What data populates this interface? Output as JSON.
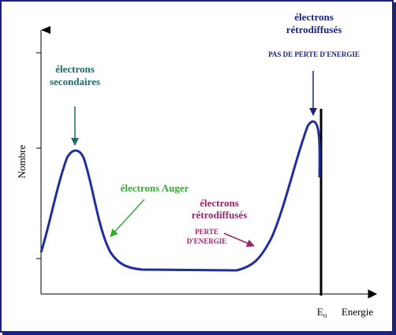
{
  "axes": {
    "y_label": "Nombre",
    "x_label": "Energie",
    "edge_label": "E",
    "edge_sub": "o"
  },
  "annotations": [
    {
      "lines": [
        "électrons",
        "secondaires"
      ]
    },
    {
      "lines": [
        "électrons Auger"
      ]
    },
    {
      "lines": [
        "électrons",
        "rétrodiffusés"
      ],
      "note": [
        "PERTE",
        "D'ENERGIE"
      ]
    },
    {
      "lines": [
        "électrons",
        "rétrodiffusés"
      ],
      "note": [
        "PAS DE PERTE D'ENERGIE"
      ]
    }
  ]
}
